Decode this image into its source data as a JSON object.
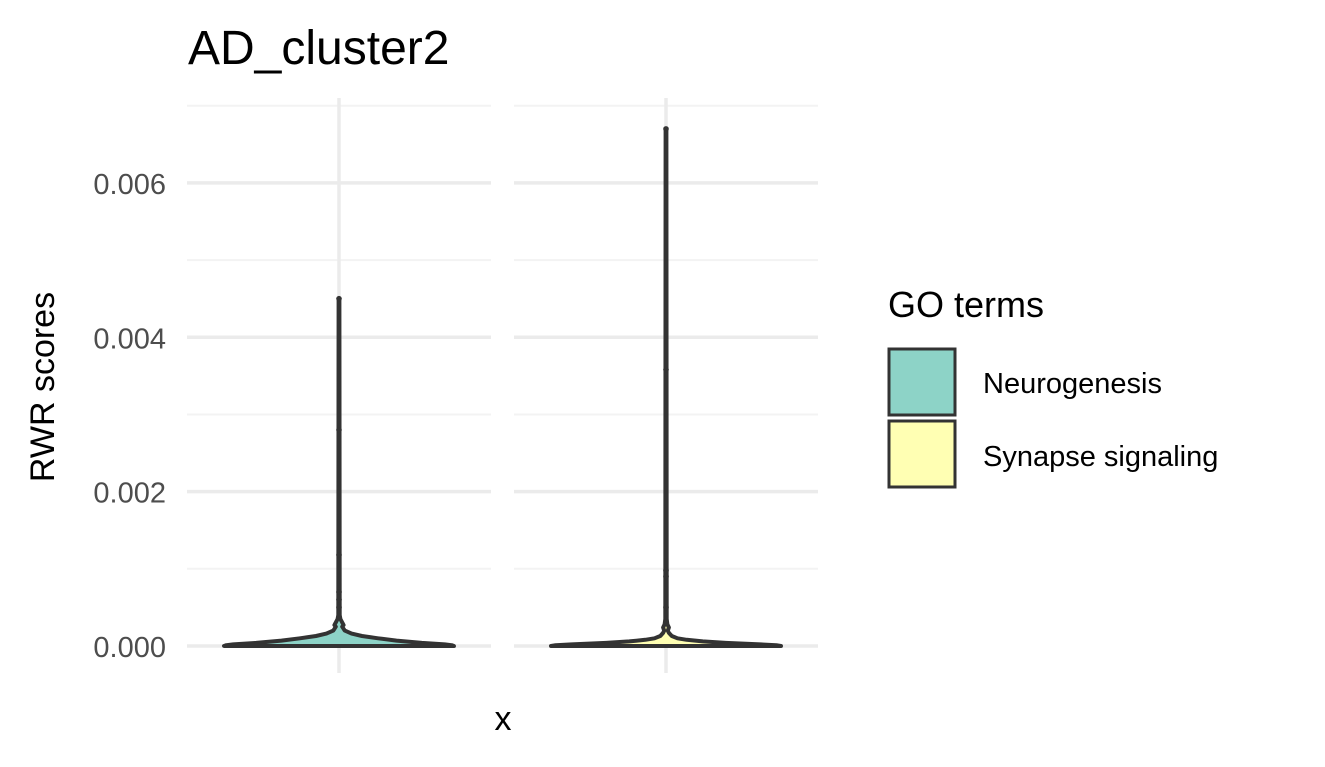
{
  "chart_data": {
    "type": "violin",
    "title": "AD_cluster2",
    "xlabel": "x",
    "ylabel": "RWR scores",
    "ylim": [
      -0.00035,
      0.0071
    ],
    "y_ticks": [
      0,
      0.002,
      0.004,
      0.006
    ],
    "y_tick_labels": [
      "0.000",
      "0.002",
      "0.004",
      "0.006"
    ],
    "grid": true,
    "facets": [
      "Neurogenesis",
      "Synapse signaling"
    ],
    "legend": {
      "title": "GO terms",
      "placement": "right",
      "entries": [
        "Neurogenesis",
        "Synapse signaling"
      ]
    },
    "colors": {
      "Neurogenesis": "#8dd3c7",
      "Synapse signaling": "#ffffb3",
      "outline": "#333333",
      "grid_major": "#ebebeb",
      "grid_minor": "#f3f3f3"
    },
    "series": [
      {
        "name": "Neurogenesis",
        "max": 0.0045,
        "min": 0,
        "points": [
          0.0045,
          0.0028,
          0.00118,
          0.0007,
          0.0006,
          0.0005
        ],
        "profile": [
          [
            0,
            1.0
          ],
          [
            1e-05,
            0.98
          ],
          [
            2e-05,
            0.92
          ],
          [
            4e-05,
            0.72
          ],
          [
            7e-05,
            0.5
          ],
          [
            0.0001,
            0.34
          ],
          [
            0.00013,
            0.2
          ],
          [
            0.00016,
            0.11
          ],
          [
            0.0002,
            0.05
          ],
          [
            0.00025,
            0.028
          ],
          [
            0.00027,
            0.04
          ],
          [
            0.0003,
            0.03
          ],
          [
            0.00035,
            0.012
          ],
          [
            0.0004,
            0.006
          ]
        ]
      },
      {
        "name": "Synapse signaling",
        "max": 0.0067,
        "min": 0,
        "points": [
          0.0067,
          0.00358,
          0.00098,
          0.0009,
          0.0005,
          0.0003
        ],
        "profile": [
          [
            0,
            1.0
          ],
          [
            1e-05,
            0.96
          ],
          [
            2e-05,
            0.82
          ],
          [
            4e-05,
            0.52
          ],
          [
            6e-05,
            0.32
          ],
          [
            8e-05,
            0.18
          ],
          [
            0.0001,
            0.1
          ],
          [
            0.00013,
            0.05
          ],
          [
            0.00017,
            0.025
          ],
          [
            0.0002,
            0.016
          ],
          [
            0.00024,
            0.025
          ],
          [
            0.00028,
            0.012
          ],
          [
            0.00035,
            0.006
          ]
        ]
      }
    ]
  }
}
